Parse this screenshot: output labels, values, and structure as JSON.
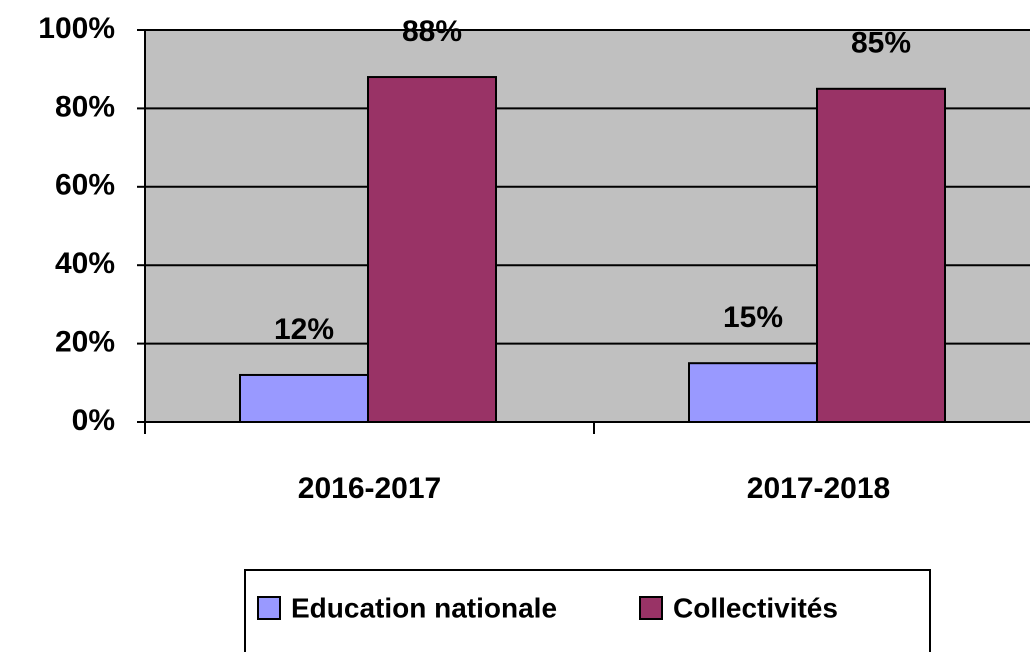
{
  "chart_data": {
    "type": "bar",
    "categories": [
      "2016-2017",
      "2017-2018"
    ],
    "series": [
      {
        "name": "Education nationale",
        "color": "#9999ff",
        "values": [
          12,
          15
        ],
        "value_labels": [
          "12%",
          "15%"
        ]
      },
      {
        "name": "Collectivités",
        "color": "#993366",
        "values": [
          88,
          85
        ],
        "value_labels": [
          "88%",
          "85%"
        ]
      }
    ],
    "ylim": [
      0,
      100
    ],
    "yticks": [
      {
        "value": 0,
        "label": "0%"
      },
      {
        "value": 20,
        "label": "20%"
      },
      {
        "value": 40,
        "label": "40%"
      },
      {
        "value": 60,
        "label": "60%"
      },
      {
        "value": 80,
        "label": "80%"
      },
      {
        "value": 100,
        "label": "100%"
      }
    ],
    "grid": true,
    "background": "#c0c0c0",
    "legend": "bottom"
  }
}
